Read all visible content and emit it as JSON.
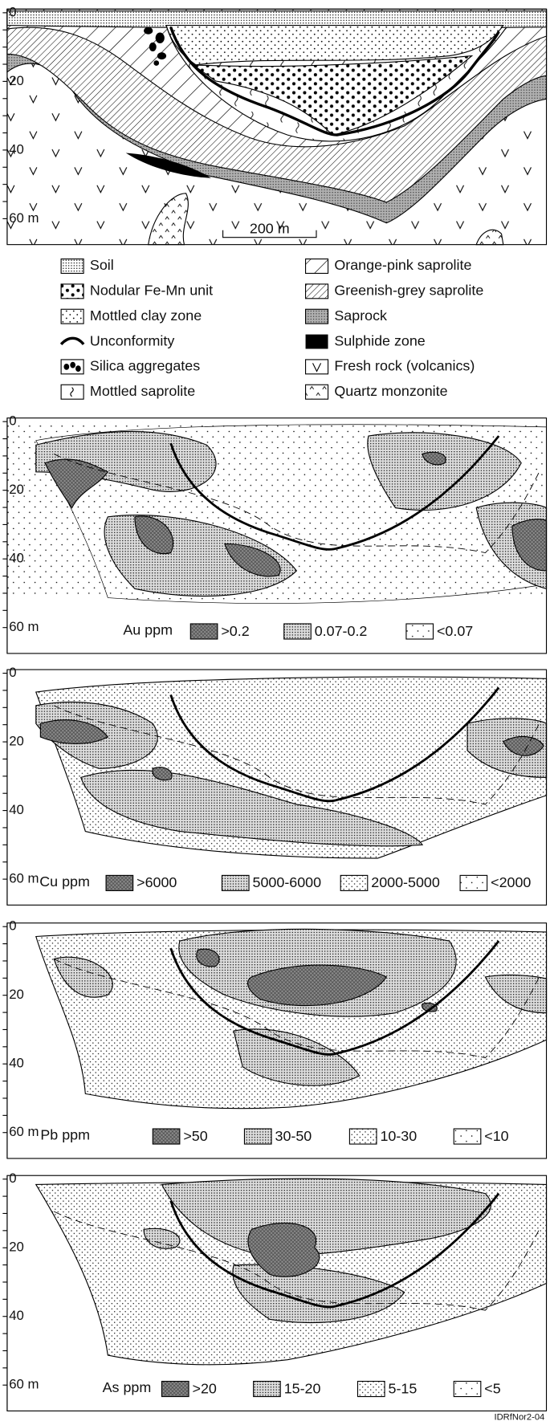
{
  "depth_ticks": [
    "0",
    "20",
    "40",
    "60 m"
  ],
  "section": {
    "scale_bar": "200 m"
  },
  "legend": [
    "Soil",
    "Nodular Fe-Mn unit",
    "Mottled clay zone",
    "Unconformity",
    "Silica aggregates",
    "Mottled saprolite",
    "Orange-pink saprolite",
    "Greenish-grey saprolite",
    "Saprock",
    "Sulphide zone",
    "Fresh rock (volcanics)",
    "Quartz monzonite"
  ],
  "panels": [
    {
      "element": "Au ppm",
      "classes": [
        ">0.2",
        "0.07-0.2",
        "<0.07"
      ]
    },
    {
      "element": "Cu ppm",
      "classes": [
        ">6000",
        "5000-6000",
        "2000-5000",
        "<2000"
      ]
    },
    {
      "element": "Pb ppm",
      "classes": [
        ">50",
        "30-50",
        "10-30",
        "<10"
      ]
    },
    {
      "element": "As ppm",
      "classes": [
        ">20",
        "15-20",
        "5-15",
        "<5"
      ]
    }
  ],
  "credit": "IDRfNor2-04"
}
